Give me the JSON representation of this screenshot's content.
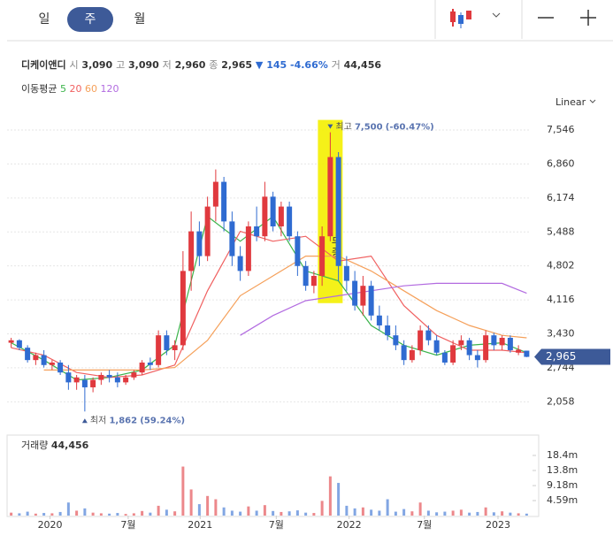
{
  "header": {
    "tabs": [
      "일",
      "주",
      "월"
    ]
  },
  "stock": {
    "name": "디케이앤디",
    "open_label": "시",
    "open": "3,090",
    "high_label": "고",
    "high": "3,090",
    "low_label": "저",
    "low": "2,960",
    "close_label": "종",
    "close": "2,965",
    "change_arrow": "▼",
    "change": "145",
    "change_pct": "-4.66%",
    "volume_label": "거",
    "volume": "44,456"
  },
  "chart_data": {
    "type": "candlestick",
    "ma_title": "이동평균",
    "scale_label": "Linear",
    "up_color": "#e0393e",
    "down_color": "#2f6bd1",
    "grid": true,
    "ylim": [
      1510,
      7850
    ],
    "yticks": [
      {
        "value": 2058,
        "label": "2,058"
      },
      {
        "value": 2744,
        "label": "2,744"
      },
      {
        "value": 3430,
        "label": "3,430"
      },
      {
        "value": 4116,
        "label": "4,116"
      },
      {
        "value": 4802,
        "label": "4,802"
      },
      {
        "value": 5488,
        "label": "5,488"
      },
      {
        "value": 6174,
        "label": "6,174"
      },
      {
        "value": 6860,
        "label": "6,860"
      },
      {
        "value": 7546,
        "label": "7,546"
      }
    ],
    "xlim": [
      -0.5,
      63.5
    ],
    "xticks": [
      {
        "value": 4.75,
        "label": "2020"
      },
      {
        "value": 14.3,
        "label": "7월"
      },
      {
        "value": 23.1,
        "label": "2021"
      },
      {
        "value": 32.4,
        "label": "7월"
      },
      {
        "value": 41.3,
        "label": "2022"
      },
      {
        "value": 50.5,
        "label": "7월"
      },
      {
        "value": 59.5,
        "label": "2023"
      }
    ],
    "candles": [
      {
        "o": 3250,
        "h": 3350,
        "l": 3150,
        "c": 3300
      },
      {
        "o": 3300,
        "h": 3320,
        "l": 3100,
        "c": 3150
      },
      {
        "o": 3150,
        "h": 3200,
        "l": 2850,
        "c": 2900
      },
      {
        "o": 2900,
        "h": 3050,
        "l": 2800,
        "c": 3000
      },
      {
        "o": 3000,
        "h": 3100,
        "l": 2750,
        "c": 2800
      },
      {
        "o": 2800,
        "h": 2900,
        "l": 2700,
        "c": 2850
      },
      {
        "o": 2850,
        "h": 2900,
        "l": 2600,
        "c": 2650
      },
      {
        "o": 2650,
        "h": 2800,
        "l": 2300,
        "c": 2450
      },
      {
        "o": 2450,
        "h": 2600,
        "l": 2300,
        "c": 2550
      },
      {
        "o": 2500,
        "h": 2600,
        "l": 1862,
        "c": 2350
      },
      {
        "o": 2350,
        "h": 2550,
        "l": 2250,
        "c": 2500
      },
      {
        "o": 2500,
        "h": 2650,
        "l": 2400,
        "c": 2600
      },
      {
        "o": 2600,
        "h": 2700,
        "l": 2450,
        "c": 2550
      },
      {
        "o": 2550,
        "h": 2650,
        "l": 2350,
        "c": 2450
      },
      {
        "o": 2450,
        "h": 2600,
        "l": 2400,
        "c": 2550
      },
      {
        "o": 2550,
        "h": 2700,
        "l": 2500,
        "c": 2650
      },
      {
        "o": 2650,
        "h": 2900,
        "l": 2600,
        "c": 2850
      },
      {
        "o": 2850,
        "h": 2950,
        "l": 2700,
        "c": 2800
      },
      {
        "o": 2800,
        "h": 3500,
        "l": 2750,
        "c": 3400
      },
      {
        "o": 3400,
        "h": 3500,
        "l": 3000,
        "c": 3100
      },
      {
        "o": 3100,
        "h": 3300,
        "l": 2900,
        "c": 3200
      },
      {
        "o": 3200,
        "h": 5100,
        "l": 3100,
        "c": 4700
      },
      {
        "o": 4700,
        "h": 5900,
        "l": 4300,
        "c": 5500
      },
      {
        "o": 5500,
        "h": 5700,
        "l": 4800,
        "c": 5000
      },
      {
        "o": 5000,
        "h": 6200,
        "l": 4900,
        "c": 6000
      },
      {
        "o": 6000,
        "h": 6750,
        "l": 5700,
        "c": 6500
      },
      {
        "o": 6500,
        "h": 6600,
        "l": 5500,
        "c": 5700
      },
      {
        "o": 5700,
        "h": 5900,
        "l": 4800,
        "c": 5000
      },
      {
        "o": 5000,
        "h": 5200,
        "l": 4500,
        "c": 4700
      },
      {
        "o": 4700,
        "h": 5700,
        "l": 4600,
        "c": 5600
      },
      {
        "o": 5600,
        "h": 6000,
        "l": 5300,
        "c": 5400
      },
      {
        "o": 5400,
        "h": 6500,
        "l": 5300,
        "c": 6200
      },
      {
        "o": 6200,
        "h": 6300,
        "l": 5500,
        "c": 5600
      },
      {
        "o": 5600,
        "h": 6100,
        "l": 5400,
        "c": 6000
      },
      {
        "o": 6000,
        "h": 6100,
        "l": 5300,
        "c": 5400
      },
      {
        "o": 5400,
        "h": 5500,
        "l": 4600,
        "c": 4800
      },
      {
        "o": 4800,
        "h": 4900,
        "l": 4300,
        "c": 4400
      },
      {
        "o": 4400,
        "h": 4700,
        "l": 4250,
        "c": 4600
      },
      {
        "o": 4600,
        "h": 5600,
        "l": 4400,
        "c": 5400
      },
      {
        "o": 5400,
        "h": 7500,
        "l": 5300,
        "c": 7000
      },
      {
        "o": 7000,
        "h": 7100,
        "l": 4500,
        "c": 4800
      },
      {
        "o": 4800,
        "h": 5000,
        "l": 4300,
        "c": 4500
      },
      {
        "o": 4500,
        "h": 4700,
        "l": 3900,
        "c": 4000
      },
      {
        "o": 4000,
        "h": 4600,
        "l": 3800,
        "c": 4400
      },
      {
        "o": 4400,
        "h": 4500,
        "l": 3700,
        "c": 3800
      },
      {
        "o": 3800,
        "h": 4000,
        "l": 3500,
        "c": 3600
      },
      {
        "o": 3600,
        "h": 3800,
        "l": 3300,
        "c": 3400
      },
      {
        "o": 3400,
        "h": 3600,
        "l": 3100,
        "c": 3200
      },
      {
        "o": 3200,
        "h": 3300,
        "l": 2800,
        "c": 2900
      },
      {
        "o": 2900,
        "h": 3200,
        "l": 2850,
        "c": 3100
      },
      {
        "o": 3100,
        "h": 3600,
        "l": 3000,
        "c": 3500
      },
      {
        "o": 3500,
        "h": 3600,
        "l": 3200,
        "c": 3300
      },
      {
        "o": 3300,
        "h": 3400,
        "l": 3000,
        "c": 3050
      },
      {
        "o": 3050,
        "h": 3100,
        "l": 2800,
        "c": 2850
      },
      {
        "o": 2850,
        "h": 3300,
        "l": 2800,
        "c": 3200
      },
      {
        "o": 3200,
        "h": 3400,
        "l": 3100,
        "c": 3300
      },
      {
        "o": 3300,
        "h": 3350,
        "l": 2900,
        "c": 3000
      },
      {
        "o": 3000,
        "h": 3100,
        "l": 2750,
        "c": 2900
      },
      {
        "o": 2900,
        "h": 3500,
        "l": 2850,
        "c": 3400
      },
      {
        "o": 3400,
        "h": 3450,
        "l": 3100,
        "c": 3200
      },
      {
        "o": 3200,
        "h": 3400,
        "l": 3100,
        "c": 3350
      },
      {
        "o": 3350,
        "h": 3400,
        "l": 3050,
        "c": 3100
      },
      {
        "o": 3050,
        "h": 3200,
        "l": 3000,
        "c": 3110
      },
      {
        "o": 3090,
        "h": 3090,
        "l": 2960,
        "c": 2965
      }
    ],
    "series": [
      {
        "name": "5",
        "color": "#3cb44b",
        "x": [
          0,
          4,
          8,
          12,
          16,
          20,
          24,
          28,
          32,
          36,
          40,
          44,
          48,
          52,
          56,
          60,
          63
        ],
        "values": [
          3250,
          2900,
          2500,
          2550,
          2700,
          3200,
          5800,
          5300,
          5800,
          4700,
          4500,
          3600,
          3200,
          3000,
          3200,
          3250,
          3050
        ]
      },
      {
        "name": "20",
        "color": "#f06060",
        "x": [
          0,
          4,
          8,
          12,
          16,
          20,
          24,
          28,
          32,
          36,
          40,
          44,
          48,
          52,
          56,
          60,
          63
        ],
        "values": [
          3150,
          3000,
          2650,
          2550,
          2600,
          2800,
          4300,
          5500,
          5300,
          5400,
          4900,
          5000,
          4000,
          3400,
          3100,
          3100,
          3050
        ]
      },
      {
        "name": "60",
        "color": "#f5a05a",
        "x": [
          0,
          4,
          8,
          12,
          16,
          20,
          24,
          28,
          32,
          36,
          40,
          44,
          48,
          52,
          56,
          60,
          63
        ],
        "values": [
          null,
          2700,
          2700,
          2700,
          2700,
          2750,
          3300,
          4200,
          4600,
          5000,
          5000,
          4700,
          4300,
          3900,
          3600,
          3400,
          3350
        ]
      },
      {
        "name": "120",
        "color": "#b26be0",
        "x": [
          0,
          4,
          8,
          12,
          16,
          20,
          24,
          28,
          32,
          36,
          40,
          44,
          48,
          52,
          56,
          60,
          63
        ],
        "values": [
          null,
          null,
          null,
          null,
          null,
          null,
          null,
          3400,
          3800,
          4100,
          4200,
          4300,
          4400,
          4450,
          4450,
          4450,
          4250
        ]
      }
    ],
    "annotations": [
      {
        "label": "최고",
        "value": 7500,
        "value_label": "7,500",
        "change": "(-60.47%)",
        "kind": "high"
      },
      {
        "label": "최저",
        "value": 1862,
        "value_label": "1,862",
        "change": "(59.24%)",
        "kind": "low"
      }
    ],
    "event": {
      "label": "무증",
      "candle": 39
    },
    "last_price": {
      "value": 2965,
      "label": "2,965"
    },
    "volume": {
      "title": "거래량",
      "total": "44,456",
      "vlim": [
        0,
        23000000
      ],
      "vticks": [
        {
          "value": 4590000,
          "label": "4.59m"
        },
        {
          "value": 9180000,
          "label": "9.18m"
        },
        {
          "value": 13800000,
          "label": "13.8m"
        },
        {
          "value": 18400000,
          "label": "18.4m"
        }
      ],
      "values": [
        900000,
        700000,
        1200000,
        600000,
        800000,
        700000,
        1100000,
        4000000,
        1500000,
        2200000,
        900000,
        700000,
        600000,
        800000,
        500000,
        700000,
        1400000,
        900000,
        3000000,
        1800000,
        1300000,
        15000000,
        8000000,
        3500000,
        6000000,
        5000000,
        2500000,
        1500000,
        1200000,
        2800000,
        1500000,
        3200000,
        1400000,
        1100000,
        1300000,
        1600000,
        900000,
        800000,
        4500000,
        12000000,
        10000000,
        3000000,
        2200000,
        2500000,
        1800000,
        1500000,
        5000000,
        1200000,
        2000000,
        1300000,
        4000000,
        1500000,
        1000000,
        1200000,
        1500000,
        1800000,
        900000,
        1100000,
        2500000,
        1000000,
        1300000,
        900000,
        700000,
        600000
      ]
    }
  }
}
